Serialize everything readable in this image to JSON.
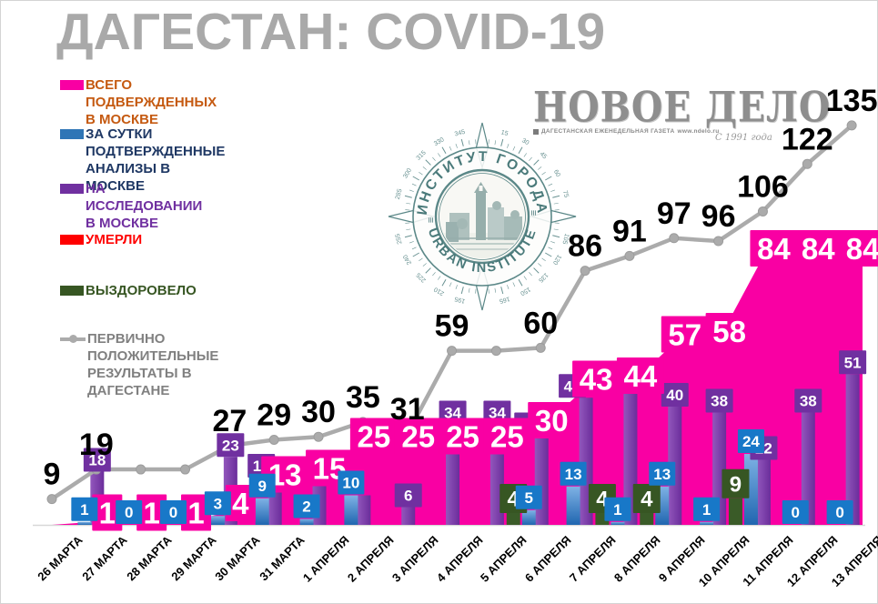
{
  "title": "ДАГЕСТАН: COVID-19",
  "legend": {
    "items": [
      {
        "label": "ВСЕГО ПОДВЕРЖДЕННЫХ В МОСКВЕ",
        "swatch_color": "#f900a3",
        "text_color": "#c55a11"
      },
      {
        "label": "ЗА СУТКИ ПОДТВЕРЖДЕННЫЕ\nАНАЛИЗЫ В МОСКВЕ",
        "swatch_color": "#2e75b6",
        "text_color": "#1f3864"
      },
      {
        "label": "НА ИССЛЕДОВАНИИ В МОСКВЕ",
        "swatch_color": "#7030a0",
        "text_color": "#7030a0"
      },
      {
        "label": "УМЕРЛИ",
        "swatch_color": "#ff0000",
        "text_color": "#ff0000"
      },
      {
        "label": "ВЫЗДОРОВЕЛО",
        "swatch_color": "#375623",
        "text_color": "#375623"
      },
      {
        "label": "ПЕРВИЧНО ПОЛОЖИТЕЛЬНЫЕ\nРЕЗУЛЬТАТЫ В ДАГЕСТАНЕ",
        "swatch_color": "#ababab",
        "text_color": "#808080"
      }
    ]
  },
  "masthead": {
    "name": "НОВОЕ ДЕЛО",
    "tagline": "ДАГЕСТАНСКАЯ ЕЖЕНЕДЕЛЬНАЯ ГАЗЕТА",
    "site": "www.ndelo.ru",
    "since": "С 1991 года"
  },
  "logo": {
    "top_text": "ИНСТИТУТ ГОРОДА",
    "bottom_text": "URBAN INSTITUTE"
  },
  "chart_data": {
    "type": "combo: area + bar + line",
    "categories": [
      "26 МАРТА",
      "27 МАРТА",
      "28 МАРТА",
      "29 МАРТА",
      "30 МАРТА",
      "31 МАРТА",
      "1 АПРЕЛЯ",
      "2 АПРЕЛЯ",
      "3 АПРЕЛЯ",
      "4 АПРЕЛЯ",
      "5 АПРЕЛЯ",
      "6 АПРЕЛЯ",
      "7 АПРЕЛЯ",
      "8 АПРЕЛЯ",
      "9 АПРЕЛЯ",
      "10 АПРЕЛЯ",
      "11 АПРЕЛЯ",
      "12 АПРЕЛЯ",
      "13 АПРЕЛЯ"
    ],
    "legend_position": "left",
    "grid": false,
    "ylim": [
      0,
      140
    ],
    "series": [
      {
        "key": "total",
        "name": "ВСЕГО ПОДВЕРЖДЕННЫХ В МОСКВЕ",
        "type": "area",
        "color": "#f900a3",
        "values": [
          0,
          1,
          1,
          1,
          4,
          13,
          15,
          25,
          25,
          25,
          25,
          30,
          43,
          44,
          57,
          58,
          84,
          84,
          84
        ],
        "labels": [
          null,
          "1",
          "1",
          "1",
          "4",
          "13",
          "15",
          "25",
          "25",
          "25",
          "25",
          "30",
          "43",
          "44",
          "57",
          "58",
          "84",
          "84",
          "84"
        ]
      },
      {
        "key": "daily",
        "name": "ЗА СУТКИ ПОДТВЕРЖДЕННЫЕ АНАЛИЗЫ В МОСКВЕ",
        "type": "bar",
        "color": "#1878c8",
        "values": [
          null,
          1,
          0,
          0,
          3,
          9,
          2,
          10,
          null,
          null,
          null,
          5,
          13,
          1,
          13,
          1,
          24,
          0,
          0
        ],
        "labels": [
          null,
          "1",
          "0",
          "0",
          "3",
          "9",
          "2",
          "10",
          null,
          null,
          null,
          "5",
          "13",
          "1",
          "13",
          "1",
          "24",
          "0",
          "0"
        ]
      },
      {
        "key": "testing",
        "name": "НА ИССЛЕДОВАНИИ В МОСКВЕ",
        "type": "bar",
        "color": "#7030a0",
        "values": [
          null,
          18,
          null,
          null,
          23,
          16,
          15,
          10,
          6,
          34,
          34,
          30,
          43,
          47,
          40,
          38,
          22,
          38,
          51
        ],
        "labels": [
          null,
          "18",
          null,
          null,
          "23",
          "16",
          "15",
          null,
          "6",
          "34",
          "34",
          "30",
          "43",
          "47",
          "40",
          "38",
          "22",
          "38",
          "51"
        ]
      },
      {
        "key": "died",
        "name": "УМЕРЛИ",
        "type": "bar",
        "color": "#ff0000",
        "values": [
          null,
          null,
          null,
          null,
          null,
          null,
          null,
          null,
          null,
          null,
          null,
          null,
          null,
          null,
          null,
          null,
          null,
          null,
          null
        ],
        "labels": [
          null,
          null,
          null,
          null,
          null,
          null,
          null,
          null,
          null,
          null,
          null,
          null,
          null,
          null,
          null,
          null,
          null,
          null,
          null
        ]
      },
      {
        "key": "recovered",
        "name": "ВЫЗДОРОВЕЛО",
        "type": "bar",
        "color": "#375623",
        "values": [
          null,
          null,
          null,
          null,
          null,
          null,
          null,
          null,
          null,
          null,
          null,
          4,
          null,
          4,
          4,
          null,
          9,
          null,
          null
        ],
        "labels": [
          null,
          null,
          null,
          null,
          null,
          null,
          null,
          null,
          null,
          null,
          null,
          "4",
          null,
          "4",
          "4",
          null,
          "9",
          null,
          null
        ]
      },
      {
        "key": "dagestan",
        "name": "ПЕРВИЧНО ПОЛОЖИТЕЛЬНЫЕ РЕЗУЛЬТАТЫ В ДАГЕСТАНЕ",
        "type": "line",
        "color": "#ababab",
        "values": [
          9,
          19,
          19,
          19,
          27,
          29,
          30,
          35,
          31,
          59,
          59,
          60,
          86,
          91,
          97,
          96,
          106,
          122,
          135
        ],
        "labels": [
          "9",
          "19",
          null,
          null,
          "27",
          "29",
          "30",
          "35",
          "31",
          "59",
          null,
          "60",
          "86",
          "91",
          "97",
          "96",
          "106",
          "122",
          "135"
        ]
      }
    ]
  }
}
